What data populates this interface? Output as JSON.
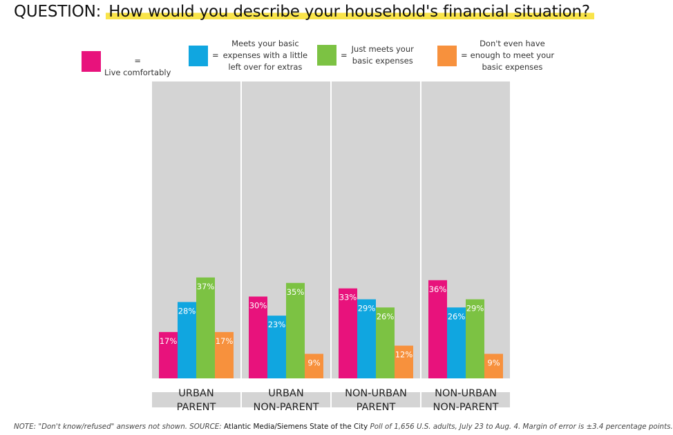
{
  "header": {
    "question_label": "QUESTION:",
    "question_text": "How would you describe your household's financial situation?"
  },
  "colors": {
    "live_comfortably": "#e8127c",
    "meets_basic_extras": "#10a6e0",
    "just_meets": "#7cc243",
    "not_enough": "#f7913d",
    "panel_bg": "#d4d4d4"
  },
  "legend": [
    {
      "key": "live_comfortably",
      "prefix": "=",
      "label": "Live comfortably"
    },
    {
      "key": "meets_basic_extras",
      "prefix": "=",
      "label": "Meets your basic\nexpenses with a little\nleft over for extras"
    },
    {
      "key": "just_meets",
      "prefix": "=",
      "label": "Just meets your\nbasic expenses"
    },
    {
      "key": "not_enough",
      "prefix": "=",
      "label": "Don't even have\nenough to meet your\nbasic expenses"
    }
  ],
  "chart_data": {
    "type": "bar",
    "title": "How would you describe your household's financial situation?",
    "categories": [
      [
        "URBAN",
        "PARENT"
      ],
      [
        "URBAN",
        "NON-PARENT"
      ],
      [
        "NON-URBAN",
        "PARENT"
      ],
      [
        "NON-URBAN",
        "NON-PARENT"
      ]
    ],
    "series": [
      {
        "name": "Live comfortably",
        "color": "#e8127c",
        "values": [
          17,
          30,
          33,
          36
        ]
      },
      {
        "name": "Meets your basic expenses with a little left over for extras",
        "color": "#10a6e0",
        "values": [
          28,
          23,
          29,
          26
        ]
      },
      {
        "name": "Just meets your basic expenses",
        "color": "#7cc243",
        "values": [
          37,
          35,
          26,
          29
        ]
      },
      {
        "name": "Don't even have enough to meet your basic expenses",
        "color": "#f7913d",
        "values": [
          17,
          9,
          12,
          9
        ]
      }
    ],
    "value_suffix": "%",
    "ylim": [
      0,
      100
    ],
    "legend_position": "top"
  },
  "note": {
    "prefix": "NOTE: \"Don't know/refused\" answers not shown. SOURCE: ",
    "source": "Atlantic Media/Siemens State of the City",
    "suffix": " Poll of 1,656 U.S. adults, July 23 to Aug. 4. Margin of error is ±3.4 percentage points."
  }
}
